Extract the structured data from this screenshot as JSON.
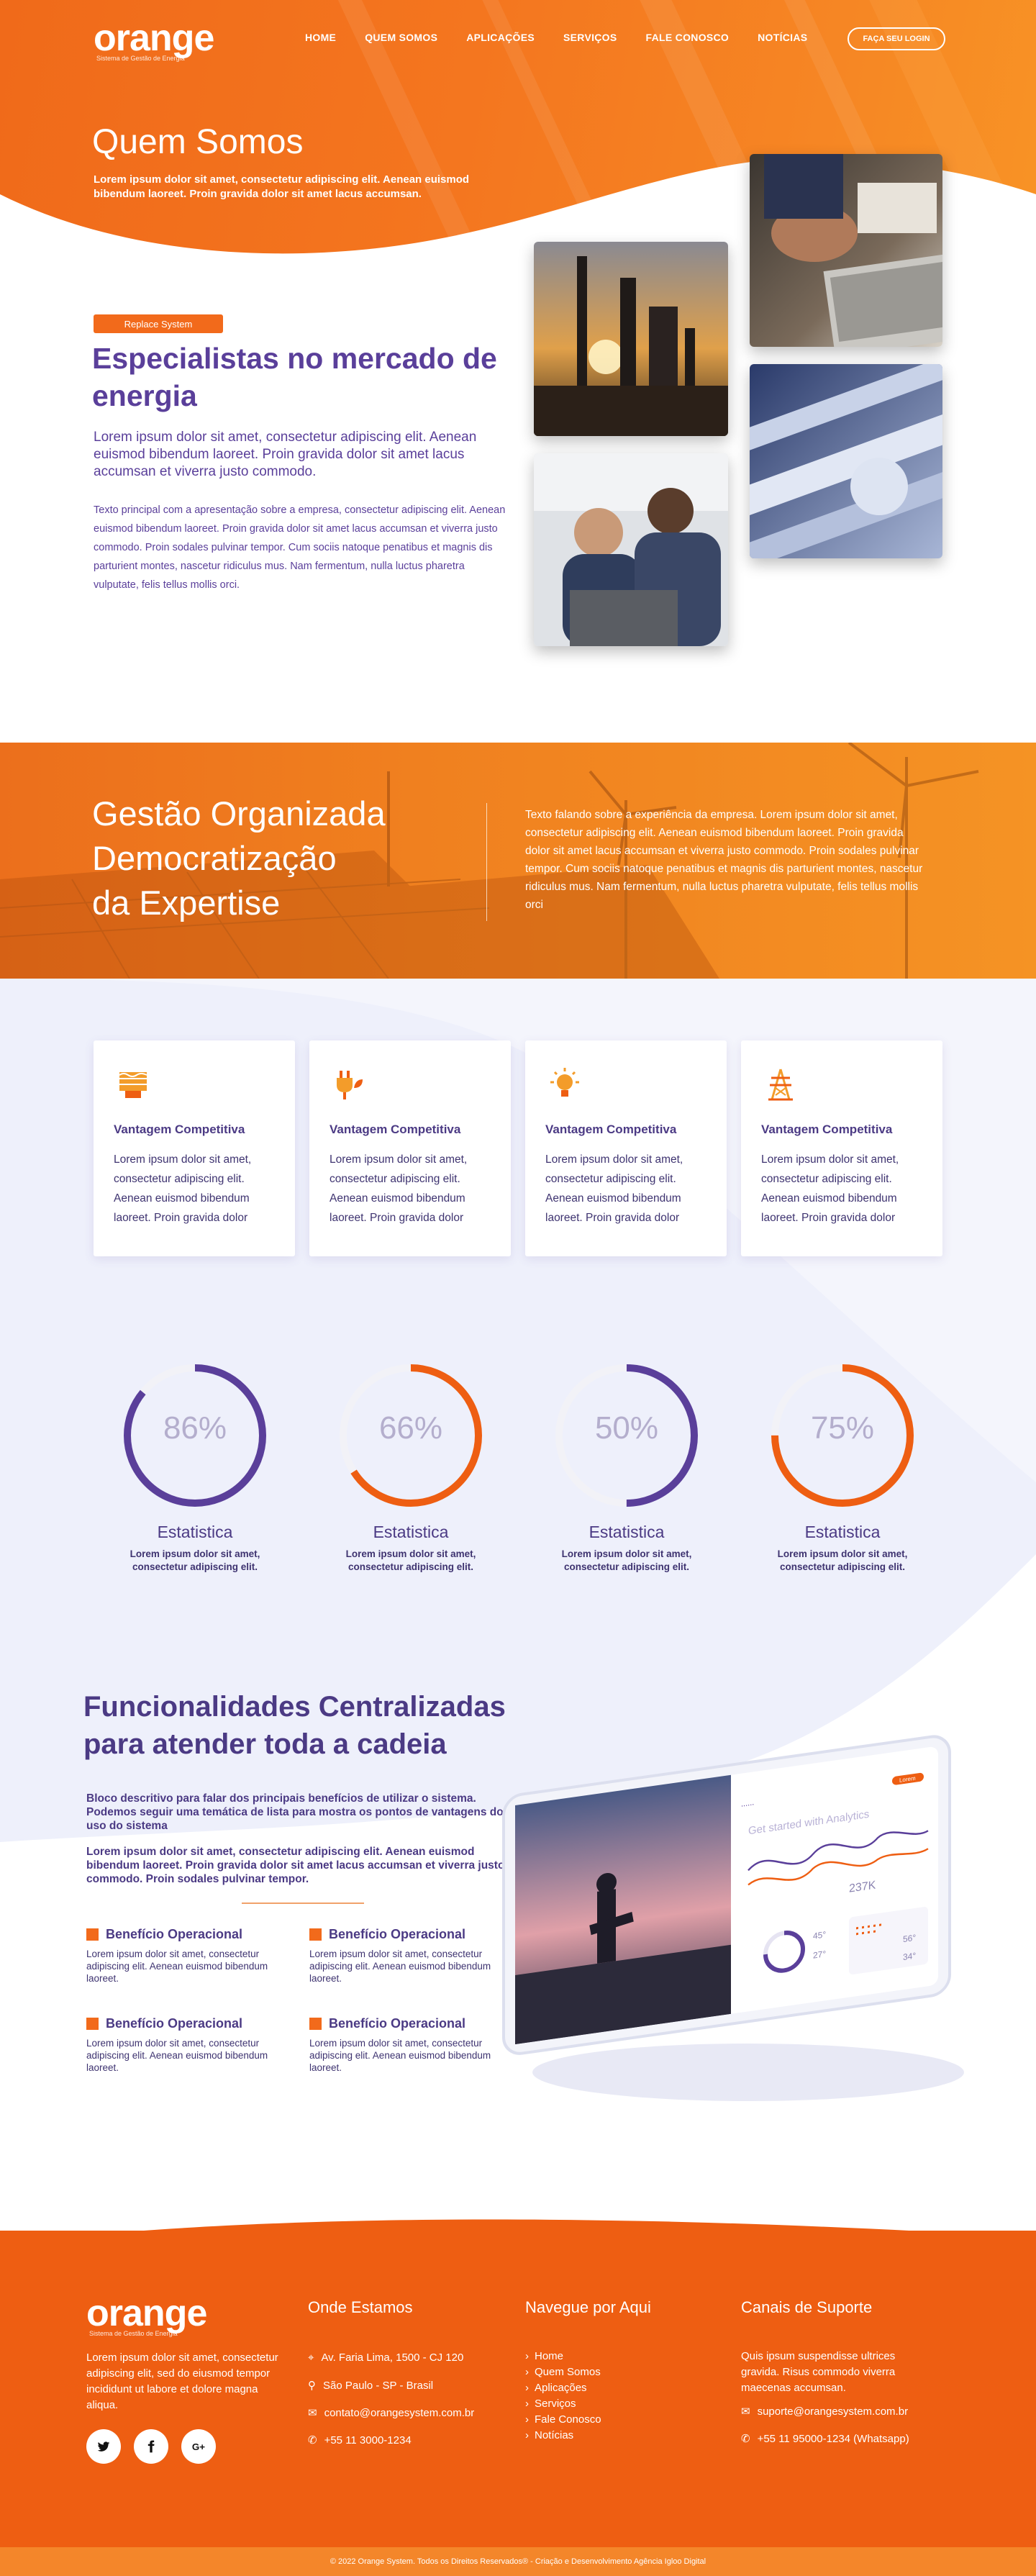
{
  "brand": {
    "name": "orange",
    "tagline": "Sistema de Gestão de Energia"
  },
  "nav": {
    "items": [
      "HOME",
      "QUEM SOMOS",
      "APLICAÇÕES",
      "SERVIÇOS",
      "FALE CONOSCO",
      "NOTÍCIAS"
    ],
    "login": "FAÇA SEU LOGIN"
  },
  "hero": {
    "title": "Quem Somos",
    "text": "Lorem ipsum dolor sit amet, consectetur adipiscing elit. Aenean euismod bibendum laoreet. Proin gravida dolor sit amet lacus accumsan."
  },
  "about": {
    "tag": "Replace System",
    "title": "Especialistas no mercado de energia",
    "lead": "Lorem ipsum dolor sit amet, consectetur adipiscing elit. Aenean euismod bibendum laoreet. Proin gravida dolor sit amet lacus accumsan et viverra justo commodo.",
    "body": "Texto principal com a apresentação sobre a empresa, consectetur adipiscing elit. Aenean euismod bibendum laoreet. Proin gravida dolor sit amet lacus accumsan et viverra justo commodo. Proin sodales pulvinar tempor. Cum sociis natoque penatibus et magnis dis parturient montes, nascetur ridiculus mus. Nam fermentum, nulla luctus pharetra vulputate, felis tellus mollis orci."
  },
  "banner": {
    "title_lines": [
      "Gestão Organizada",
      "Democratização",
      "da Expertise"
    ],
    "text": "Texto falando sobre a experiência da empresa. Lorem ipsum dolor sit amet, consectetur adipiscing elit. Aenean euismod bibendum laoreet. Proin gravida dolor sit amet lacus accumsan et viverra justo commodo. Proin sodales pulvinar tempor. Cum sociis natoque penatibus et magnis dis parturient montes, nascetur ridiculus mus. Nam fermentum, nulla luctus pharetra vulputate, felis tellus mollis orci"
  },
  "cards": [
    {
      "icon": "solar-panel-icon",
      "title": "Vantagem Competitiva",
      "text": "Lorem ipsum dolor sit amet, consectetur adipiscing elit. Aenean euismod bibendum laoreet. Proin gravida dolor"
    },
    {
      "icon": "eco-plug-icon",
      "title": "Vantagem Competitiva",
      "text": "Lorem ipsum dolor sit amet, consectetur adipiscing elit. Aenean euismod bibendum laoreet. Proin gravida dolor"
    },
    {
      "icon": "lightbulb-icon",
      "title": "Vantagem Competitiva",
      "text": "Lorem ipsum dolor sit amet, consectetur adipiscing elit. Aenean euismod bibendum laoreet. Proin gravida dolor"
    },
    {
      "icon": "power-tower-icon",
      "title": "Vantagem Competitiva",
      "text": "Lorem ipsum dolor sit amet, consectetur adipiscing elit. Aenean euismod bibendum laoreet. Proin gravida dolor"
    }
  ],
  "stats": [
    {
      "percent": "86%",
      "value": 0.86,
      "color": "#5a3f9a",
      "label": "Estatistica",
      "desc": "Lorem ipsum dolor sit amet, consectetur adipiscing elit."
    },
    {
      "percent": "66%",
      "value": 0.66,
      "color": "#ee5e12",
      "label": "Estatistica",
      "desc": "Lorem ipsum dolor sit amet, consectetur adipiscing elit."
    },
    {
      "percent": "50%",
      "value": 0.5,
      "color": "#5a3f9a",
      "label": "Estatistica",
      "desc": "Lorem ipsum dolor sit amet, consectetur adipiscing elit."
    },
    {
      "percent": "75%",
      "value": 0.75,
      "color": "#ee5e12",
      "label": "Estatistica",
      "desc": "Lorem ipsum dolor sit amet, consectetur adipiscing elit."
    }
  ],
  "features": {
    "title": "Funcionalidades Centralizadas para atender toda a cadeia",
    "p1": "Bloco descritivo para falar dos principais benefícios de utilizar o sistema. Podemos seguir uma temática de lista para mostra os pontos de vantagens do uso do sistema",
    "p2": "Lorem ipsum dolor sit amet, consectetur adipiscing elit. Aenean euismod bibendum laoreet. Proin gravida dolor sit amet lacus accumsan et viverra justo commodo. Proin sodales pulvinar tempor.",
    "benefits": [
      {
        "title": "Benefício Operacional",
        "text": "Lorem ipsum dolor sit amet, consectetur adipiscing elit. Aenean euismod bibendum laoreet."
      },
      {
        "title": "Benefício Operacional",
        "text": "Lorem ipsum dolor sit amet, consectetur adipiscing elit. Aenean euismod bibendum laoreet."
      },
      {
        "title": "Benefício Operacional",
        "text": "Lorem ipsum dolor sit amet, consectetur adipiscing elit. Aenean euismod bibendum laoreet."
      },
      {
        "title": "Benefício Operacional",
        "text": "Lorem ipsum dolor sit amet, consectetur adipiscing elit. Aenean euismod bibendum laoreet."
      }
    ],
    "tablet": {
      "heading": "Get started with Analytics",
      "value": "237K",
      "button": "Lorem",
      "v1": "45°",
      "v2": "27°",
      "v3": "56°",
      "v4": "34°"
    }
  },
  "footer": {
    "about": "Lorem ipsum dolor sit amet, consectetur adipiscing elit, sed do eiusmod tempor incididunt ut labore et dolore magna aliqua.",
    "where_title": "Onde Estamos",
    "address": "Av. Faria Lima, 1500 - CJ 120",
    "city": "São Paulo - SP - Brasil",
    "email": "contato@orangesystem.com.br",
    "phone": "+55 11 3000-1234",
    "nav_title": "Navegue por Aqui",
    "nav_items": [
      "Home",
      "Quem Somos",
      "Aplicações",
      "Serviços",
      "Fale Conosco",
      "Notícias"
    ],
    "support_title": "Canais de Suporte",
    "support_text": "Quis ipsum suspendisse ultrices gravida. Risus commodo viverra maecenas accumsan.",
    "support_email": "suporte@orangesystem.com.br",
    "support_phone": "+55 11 95000-1234 (Whatsapp)",
    "social": [
      "twitter-icon",
      "facebook-icon",
      "google-plus-icon"
    ],
    "copyright": "© 2022 Orange System. Todos os Direitos Reservados® - Criação e Desenvolvimento Agência Igloo Digital"
  }
}
